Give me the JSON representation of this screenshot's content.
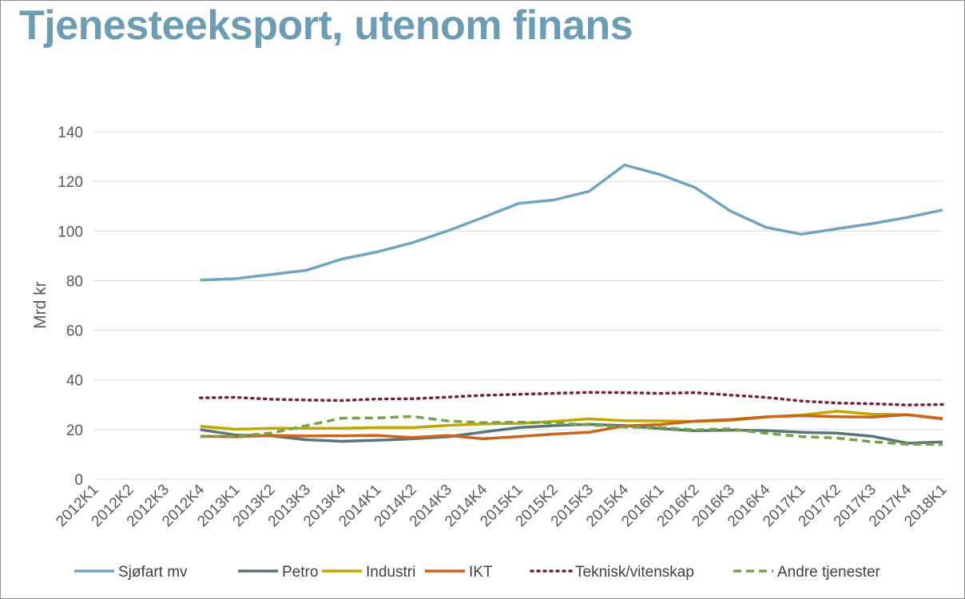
{
  "title": "Tjenesteeksport, utenom finans",
  "chart_data": {
    "type": "line",
    "ylabel": "Mrd kr",
    "xlabel": "",
    "ylim": [
      0,
      140
    ],
    "yticks": [
      0,
      20,
      40,
      60,
      80,
      100,
      120,
      140
    ],
    "grid": true,
    "legend_position": "bottom",
    "categories": [
      "2012K1",
      "2012K2",
      "2012K3",
      "2012K4",
      "2013K1",
      "2013K2",
      "2013K3",
      "2013K4",
      "2014K1",
      "2014K2",
      "2014K3",
      "2014K4",
      "2015K1",
      "2015K2",
      "2015K3",
      "2015K4",
      "2016K1",
      "2016K2",
      "2016K3",
      "2016K4",
      "2017K1",
      "2017K2",
      "2017K3",
      "2017K4",
      "2018K1"
    ],
    "series": [
      {
        "name": "Sjøfart mv",
        "color": "#6fa6bd",
        "style": "solid",
        "values": [
          null,
          null,
          null,
          80.2,
          80.8,
          82.5,
          84.2,
          88.7,
          91.6,
          95.3,
          100.1,
          105.5,
          111.1,
          112.5,
          116.0,
          126.6,
          122.8,
          117.5,
          108.0,
          101.5,
          98.7,
          100.9,
          103.0,
          105.5,
          108.5
        ]
      },
      {
        "name": "Petro",
        "color": "#5a7478",
        "style": "solid",
        "values": [
          null,
          null,
          null,
          20.0,
          17.8,
          17.5,
          15.9,
          15.3,
          15.7,
          16.3,
          17.1,
          19.0,
          20.8,
          21.6,
          22.1,
          21.6,
          20.4,
          19.5,
          19.8,
          19.6,
          18.9,
          18.6,
          17.3,
          14.5,
          15.0
        ]
      },
      {
        "name": "Industri",
        "color": "#c4a600",
        "style": "solid",
        "values": [
          null,
          null,
          null,
          21.3,
          20.1,
          20.5,
          20.5,
          20.5,
          20.8,
          20.8,
          21.7,
          22.3,
          22.5,
          23.3,
          24.3,
          23.6,
          23.5,
          23.3,
          23.7,
          25.1,
          25.8,
          27.4,
          26.2,
          26.0,
          24.5
        ]
      },
      {
        "name": "IKT",
        "color": "#c8641e",
        "style": "solid",
        "values": [
          null,
          null,
          null,
          17.3,
          17.1,
          17.6,
          17.4,
          17.5,
          17.6,
          16.8,
          17.6,
          16.3,
          17.2,
          18.2,
          18.9,
          21.5,
          22.0,
          23.4,
          24.0,
          25.1,
          25.6,
          25.2,
          25.0,
          26.0,
          24.3
        ]
      },
      {
        "name": "Teknisk/vitenskap",
        "color": "#7a1f3c",
        "style": "dotted",
        "values": [
          null,
          null,
          null,
          32.8,
          33.0,
          32.2,
          31.9,
          31.7,
          32.3,
          32.4,
          33.1,
          33.8,
          34.2,
          34.6,
          35.0,
          34.9,
          34.6,
          34.9,
          33.9,
          33.0,
          31.5,
          30.7,
          30.4,
          29.9,
          30.1
        ]
      },
      {
        "name": "Andre tjenester",
        "color": "#73a545",
        "style": "dashed",
        "values": [
          null,
          null,
          null,
          17.2,
          17.3,
          18.6,
          21.6,
          24.6,
          24.7,
          25.3,
          23.5,
          22.8,
          23.0,
          22.7,
          21.9,
          21.0,
          20.8,
          19.9,
          20.3,
          18.5,
          17.2,
          16.6,
          15.1,
          14.1,
          14.0
        ]
      }
    ]
  }
}
